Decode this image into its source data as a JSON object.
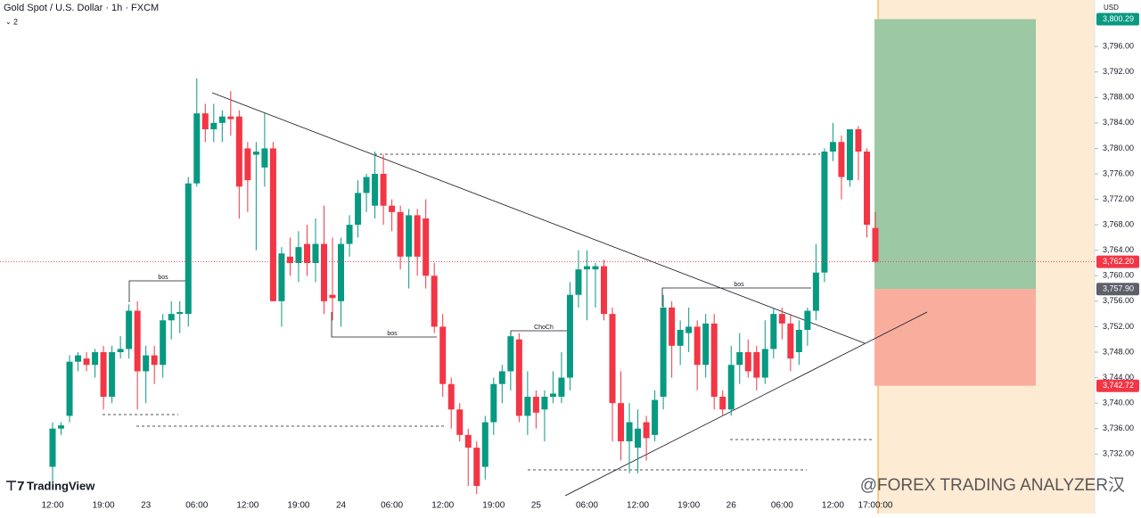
{
  "chart_data": {
    "type": "candlestick",
    "title": "Gold Spot / U.S. Dollar · 1h · FXCM",
    "indicator_count": "2",
    "currency": "USD",
    "up_color": "#089981",
    "down_color": "#f23645",
    "categories": [
      "12:00",
      null,
      null,
      null,
      null,
      null,
      "19:00",
      null,
      null,
      null,
      null,
      "23",
      null,
      null,
      null,
      null,
      null,
      "06:00",
      null,
      null,
      null,
      null,
      null,
      "12:00",
      null,
      null,
      null,
      null,
      null,
      "19:00",
      null,
      null,
      null,
      null,
      "24",
      null,
      null,
      null,
      null,
      null,
      "06:00",
      null,
      null,
      null,
      null,
      null,
      "12:00",
      null,
      null,
      null,
      null,
      null,
      "19:00",
      null,
      null,
      null,
      null,
      "25",
      null,
      null,
      null,
      null,
      null,
      "06:00",
      null,
      null,
      null,
      null,
      null,
      "12:00",
      null,
      null,
      null,
      null,
      null,
      "19:00",
      null,
      null,
      null,
      null,
      "26",
      null,
      null,
      null,
      null,
      null,
      "06:00",
      null,
      null,
      null,
      null,
      null,
      "12:00",
      null,
      null,
      null,
      null,
      "17:00:00"
    ],
    "open": [
      3730,
      3736,
      3738,
      3746.5,
      3747,
      3746,
      3748,
      3741,
      3748,
      3748.5,
      3754.5,
      3745,
      3747.5,
      3746,
      3753,
      3754,
      3754,
      3774.5,
      3785.5,
      3783,
      3784,
      3785,
      3785,
      3780,
      3779,
      3777,
      3780,
      3756,
      3763,
      3762,
      3765,
      3762,
      3765,
      3757,
      3756,
      3765,
      3768,
      3773,
      3771,
      3776,
      3771,
      3770,
      3763,
      3769.5,
      3769,
      3760,
      3752,
      3743,
      3739,
      3735,
      3733,
      3730,
      3737,
      3743,
      3745,
      3750,
      3738,
      3741,
      3739,
      3741,
      3741,
      3744,
      3757,
      3761,
      3761,
      3761.5,
      3754,
      3740,
      3734,
      3733,
      3737,
      3735,
      3741,
      3755,
      3749,
      3751,
      3752,
      3746,
      3752.5,
      3741,
      3739,
      3746,
      3748,
      3748,
      3744,
      3748.5,
      3754,
      3752.5,
      3748,
      3751.5,
      3754.5,
      3760.5,
      3779.5,
      3781,
      3775,
      3783,
      3779.5,
      3767.5
    ],
    "high": [
      3737,
      3737,
      3747.5,
      3748,
      3748,
      3748.5,
      3749,
      3749,
      3750.5,
      3755.5,
      3756,
      3749,
      3749,
      3754,
      3756,
      3756,
      3775.5,
      3791,
      3787,
      3787,
      3786,
      3789,
      3786,
      3781,
      3781,
      3785.5,
      3781,
      3764.5,
      3766,
      3767,
      3768,
      3769,
      3771,
      3766,
      3766,
      3769.5,
      3775,
      3776,
      3779.5,
      3779,
      3772,
      3771,
      3770.5,
      3770.5,
      3772,
      3762,
      3754,
      3744,
      3740,
      3736,
      3734,
      3738,
      3744,
      3746,
      3751,
      3751,
      3745,
      3742,
      3742,
      3745,
      3748,
      3759,
      3764,
      3764,
      3762,
      3762.5,
      3755,
      3745,
      3740,
      3739,
      3738,
      3742,
      3757,
      3756,
      3753,
      3755,
      3753,
      3754,
      3754,
      3742,
      3749,
      3751,
      3750,
      3749,
      3753,
      3755,
      3755,
      3754,
      3753,
      3755,
      3765,
      3780,
      3784,
      3782,
      3783,
      3783.5,
      3780,
      3770
    ],
    "low": [
      3727,
      3735,
      3737,
      3745,
      3745,
      3744,
      3739,
      3740,
      3747,
      3747,
      3739,
      3740,
      3743,
      3744,
      3750,
      3751,
      3752,
      3774,
      3781,
      3781,
      3781,
      3782,
      3769,
      3770,
      3764,
      3774,
      3756,
      3752,
      3760,
      3759,
      3760,
      3759,
      3754,
      3753,
      3752,
      3763,
      3766,
      3770,
      3769,
      3768,
      3767,
      3761,
      3758,
      3760,
      3758,
      3751,
      3741,
      3736,
      3734,
      3727,
      3725.7,
      3728,
      3735,
      3740,
      3742,
      3737,
      3735,
      3736,
      3734,
      3740,
      3740,
      3742,
      3755,
      3753,
      3755,
      3753,
      3734,
      3731,
      3729,
      3729,
      3731,
      3734,
      3739,
      3744,
      3746,
      3748,
      3742,
      3744,
      3739,
      3738,
      3738,
      3743,
      3744,
      3742,
      3743,
      3747,
      3750,
      3745,
      3746,
      3749,
      3753,
      3759,
      3778,
      3772,
      3774,
      3775,
      3766,
      3762
    ],
    "close": [
      3736,
      3736.5,
      3746.5,
      3747.5,
      3746,
      3748,
      3741,
      3748,
      3748.5,
      3754.5,
      3745,
      3747.5,
      3746,
      3753,
      3754,
      3754.3,
      3774.5,
      3785.5,
      3783,
      3784,
      3785,
      3784.6,
      3774,
      3775,
      3779.5,
      3780,
      3756,
      3763.5,
      3762,
      3764.5,
      3762,
      3765,
      3756,
      3756.5,
      3765,
      3768,
      3773,
      3775.5,
      3776,
      3771,
      3770,
      3763,
      3769.5,
      3763,
      3760,
      3752,
      3743,
      3739,
      3735,
      3733,
      3727,
      3737,
      3743,
      3745,
      3750.5,
      3738,
      3741,
      3738.5,
      3741,
      3741.5,
      3744,
      3757,
      3761,
      3761.5,
      3761.5,
      3754,
      3740,
      3734,
      3737,
      3736,
      3734.5,
      3740.5,
      3755,
      3749,
      3751.5,
      3752,
      3746,
      3752.5,
      3741,
      3739,
      3746,
      3748,
      3745,
      3744,
      3748.5,
      3754,
      3752.5,
      3747,
      3751.5,
      3754.5,
      3760.5,
      3779.5,
      3781,
      3775.5,
      3783,
      3779.5,
      3768,
      3762.2
    ],
    "ylim": [
      3725.6,
      3803.3
    ],
    "yticks": [
      {
        "value": 3732,
        "label": "3,732.00"
      },
      {
        "value": 3736,
        "label": "3,736.00"
      },
      {
        "value": 3740,
        "label": "3,740.00"
      },
      {
        "value": 3744,
        "label": "3,744.00"
      },
      {
        "value": 3748,
        "label": "3,748.00"
      },
      {
        "value": 3752,
        "label": "3,752.00"
      },
      {
        "value": 3756,
        "label": "3,756.00"
      },
      {
        "value": 3760,
        "label": "3,760.00"
      },
      {
        "value": 3764,
        "label": "3,764.00"
      },
      {
        "value": 3768,
        "label": "3,768.00"
      },
      {
        "value": 3772,
        "label": "3,772.00"
      },
      {
        "value": 3776,
        "label": "3,776.00"
      },
      {
        "value": 3780,
        "label": "3,780.00"
      },
      {
        "value": 3784,
        "label": "3,784.00"
      },
      {
        "value": 3788,
        "label": "3,788.00"
      },
      {
        "value": 3792,
        "label": "3,792.00"
      },
      {
        "value": 3796,
        "label": "3,796.00"
      }
    ],
    "price_labels": [
      {
        "value": 3762.2,
        "label": "3,762.20",
        "color": "#f23645"
      },
      {
        "value": 3757.9,
        "label": "3,757.90",
        "color": "#5d606b"
      },
      {
        "value": 3742.72,
        "label": "3,742.72",
        "color": "#f23645"
      },
      {
        "value": 3800.29,
        "label": "3,800.29",
        "color": "#089981"
      }
    ],
    "annotations": [
      "bos",
      "bos",
      "ChoCh",
      "bos"
    ],
    "logo": "TradingView",
    "watermark": "@FOREX TRADING ANALYZER汉"
  }
}
